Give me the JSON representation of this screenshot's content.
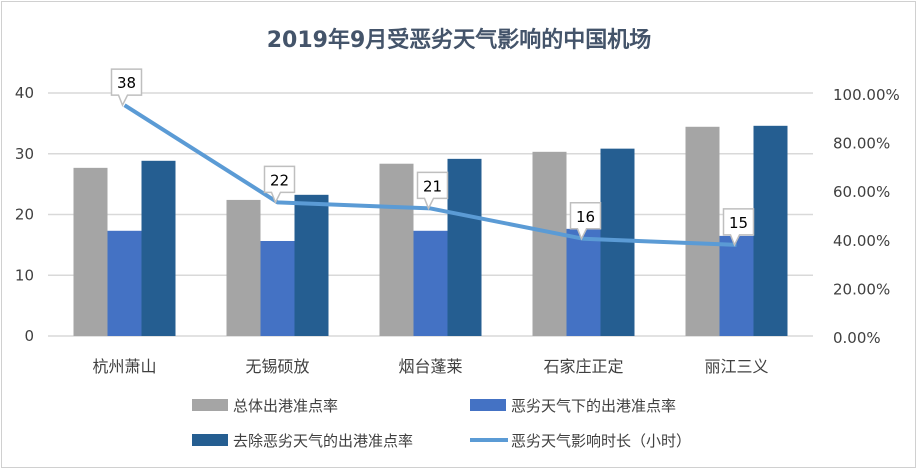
{
  "chart_data": {
    "type": "bar",
    "title": "2019年9月受恶劣天气影响的中国机场",
    "categories": [
      "杭州萧山",
      "无锡硕放",
      "烟台蓬莱",
      "石家庄正定",
      "丽江三义"
    ],
    "series": [
      {
        "name": "总体出港准点率",
        "type": "bar",
        "axis": "right",
        "color": "#a5a5a5",
        "values": [
          0.692,
          0.56,
          0.709,
          0.758,
          0.861
        ]
      },
      {
        "name": "恶劣天气下的出港准点率",
        "type": "bar",
        "axis": "right",
        "color": "#4472c4",
        "values": [
          0.433,
          0.391,
          0.433,
          0.441,
          0.412
        ]
      },
      {
        "name": "去除恶劣天气的出港准点率",
        "type": "bar",
        "axis": "right",
        "color": "#255e91",
        "values": [
          0.721,
          0.581,
          0.729,
          0.771,
          0.865
        ]
      },
      {
        "name": "恶劣天气影响时长（小时）",
        "type": "line",
        "axis": "left",
        "color": "#5b9bd5",
        "values": [
          38,
          22,
          21,
          16,
          15
        ],
        "data_labels": [
          "38",
          "22",
          "21",
          "16",
          "15"
        ]
      }
    ],
    "left_axis": {
      "range": [
        0,
        40
      ],
      "ticks": [
        "0",
        "10",
        "20",
        "30",
        "40"
      ]
    },
    "right_axis": {
      "range": [
        0,
        1
      ],
      "ticks": [
        "0.00%",
        "20.00%",
        "40.00%",
        "60.00%",
        "80.00%",
        "100.00%"
      ]
    },
    "grid": true,
    "legend_position": "bottom"
  }
}
